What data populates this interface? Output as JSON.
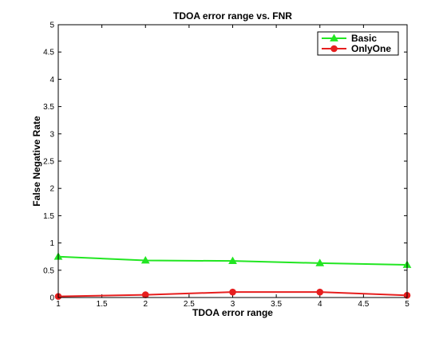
{
  "chart_data": {
    "type": "line",
    "title": "TDOA error range vs. FNR",
    "xlabel": "TDOA error range",
    "ylabel": "False Negative Rate",
    "xlim": [
      1,
      5
    ],
    "ylim": [
      0,
      5
    ],
    "xticks": [
      "1",
      "1.5",
      "2",
      "2.5",
      "3",
      "3.5",
      "4",
      "4.5",
      "5"
    ],
    "yticks": [
      "0",
      "0.5",
      "1",
      "1.5",
      "2",
      "2.5",
      "3",
      "3.5",
      "4",
      "4.5",
      "5"
    ],
    "grid": false,
    "legend_position": "top-right",
    "x": [
      1,
      2,
      3,
      4,
      5
    ],
    "series": [
      {
        "name": "Basic",
        "color": "#22e622",
        "marker": "triangle",
        "values": [
          0.75,
          0.68,
          0.67,
          0.63,
          0.6
        ]
      },
      {
        "name": "OnlyOne",
        "color": "#e61e1e",
        "marker": "circle",
        "values": [
          0.02,
          0.05,
          0.1,
          0.1,
          0.04
        ]
      }
    ]
  }
}
